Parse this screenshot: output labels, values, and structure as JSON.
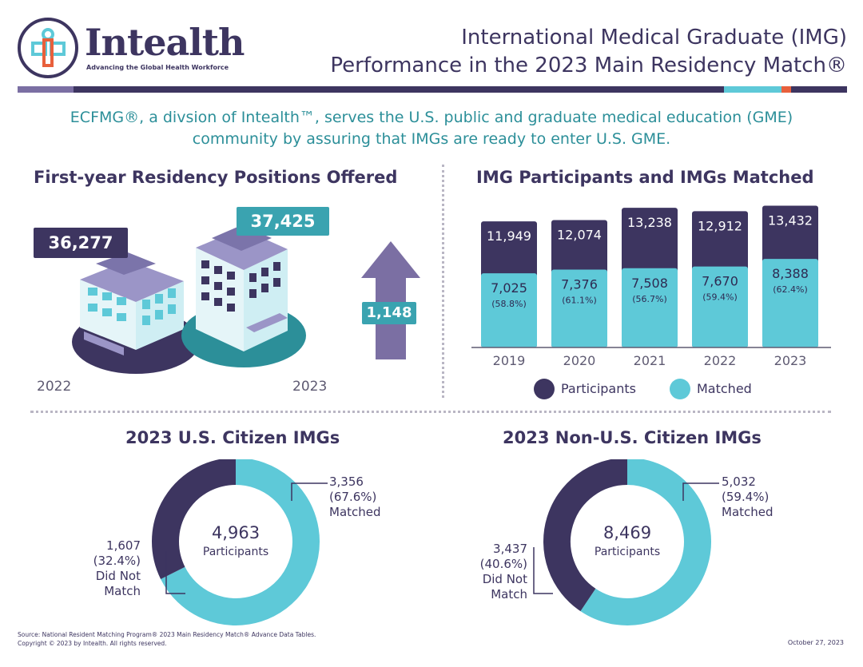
{
  "logo": {
    "name": "Intealth",
    "tm": "™",
    "tagline": "Advancing the Global Health Workforce"
  },
  "title": {
    "line1": "International Medical Graduate (IMG)",
    "line2": "Performance in the 2023 Main Residency Match®"
  },
  "intro": {
    "line1": "ECFMG®, a divsion of Intealth™, serves the U.S. public and graduate medical education (GME)",
    "line2": "community by assuring that IMGs are ready to enter U.S. GME."
  },
  "colors": {
    "dark": "#3d3560",
    "teal": "#5ec9d8",
    "arrow": "#7b6fa3",
    "cardDark": "#3d3560",
    "cardTeal": "#3aa3b0"
  },
  "positions": {
    "title": "First-year Residency Positions Offered",
    "value_2022": "36,277",
    "value_2023": "37,425",
    "increase": "1,148",
    "year_2022": "2022",
    "year_2023": "2023"
  },
  "participants_chart": {
    "title": "IMG Participants and IMGs Matched",
    "legend_participants": "Participants",
    "legend_matched": "Matched"
  },
  "chart_data": [
    {
      "type": "bar",
      "title": "IMG Participants and IMGs Matched",
      "categories": [
        "2019",
        "2020",
        "2021",
        "2022",
        "2023"
      ],
      "series": [
        {
          "name": "Participants",
          "values": [
            11949,
            12074,
            13238,
            12912,
            13432
          ],
          "labels": [
            "11,949",
            "12,074",
            "13,238",
            "12,912",
            "13,432"
          ]
        },
        {
          "name": "Matched",
          "values": [
            7025,
            7376,
            7508,
            7670,
            8388
          ],
          "labels": [
            "7,025",
            "7,376",
            "7,508",
            "7,670",
            "8,388"
          ],
          "percents": [
            "(58.8%)",
            "(61.1%)",
            "(56.7%)",
            "(59.4%)",
            "(62.4%)"
          ]
        }
      ],
      "ylim": [
        0,
        14000
      ]
    },
    {
      "type": "pie",
      "title": "2023 U.S. Citizen IMGs",
      "total": 4963,
      "total_label": "4,963",
      "center_label": "Participants",
      "slices": [
        {
          "name": "Matched",
          "value": 3356,
          "value_label": "3,356",
          "pct": "(67.6%)"
        },
        {
          "name": "Did Not Match",
          "value": 1607,
          "value_label": "1,607",
          "pct": "(32.4%)"
        }
      ]
    },
    {
      "type": "pie",
      "title": "2023 Non-U.S. Citizen IMGs",
      "total": 8469,
      "total_label": "8,469",
      "center_label": "Participants",
      "slices": [
        {
          "name": "Matched",
          "value": 5032,
          "value_label": "5,032",
          "pct": "(59.4%)"
        },
        {
          "name": "Did Not Match",
          "value": 3437,
          "value_label": "3,437",
          "pct": "(40.6%)"
        }
      ]
    }
  ],
  "donut_us": {
    "matched_lines": [
      "3,356",
      "(67.6%)",
      "Matched"
    ],
    "unmatched_lines": [
      "1,607",
      "(32.4%)",
      "Did Not",
      "Match"
    ]
  },
  "donut_nonus": {
    "matched_lines": [
      "5,032",
      "(59.4%)",
      "Matched"
    ],
    "unmatched_lines": [
      "3,437",
      "(40.6%)",
      "Did Not",
      "Match"
    ]
  },
  "footer": {
    "source": "Source: National Resident Matching Program® 2023 Main Residency Match® Advance Data Tables.",
    "copyright": "Copyright © 2023 by Intealth. All rights reserved.",
    "date": "October 27, 2023"
  }
}
